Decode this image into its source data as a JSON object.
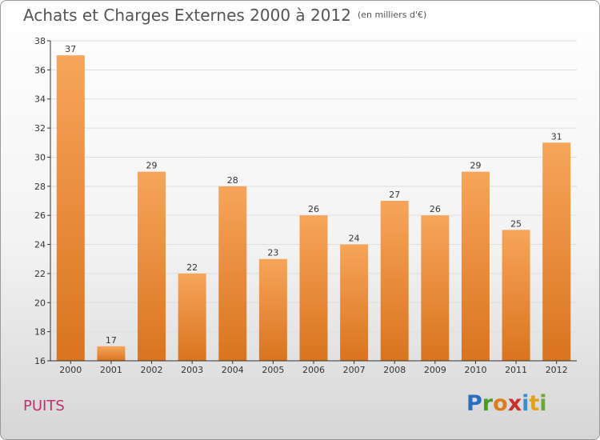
{
  "title": "Achats et Charges Externes 2000 à 2012",
  "unit_label": "(en milliers d'€)",
  "commune": "PUITS",
  "logo": {
    "letters": [
      "P",
      "r",
      "o",
      "x",
      "i",
      "t",
      "i"
    ]
  },
  "colors": {
    "bar_top": "#f7a55a",
    "bar_bottom": "#d9741f",
    "axis": "#333333",
    "grid": "#dddddd"
  },
  "chart_data": {
    "type": "bar",
    "title": "Achats et Charges Externes 2000 à 2012",
    "subtitle": "(en milliers d'€)",
    "categories": [
      "2000",
      "2001",
      "2002",
      "2003",
      "2004",
      "2005",
      "2006",
      "2007",
      "2008",
      "2009",
      "2010",
      "2011",
      "2012"
    ],
    "values": [
      37,
      17,
      29,
      22,
      28,
      23,
      26,
      24,
      27,
      26,
      29,
      25,
      31
    ],
    "ylim": [
      16,
      38
    ],
    "yticks": [
      16,
      18,
      20,
      22,
      24,
      26,
      28,
      30,
      32,
      34,
      36,
      38
    ],
    "grid": true,
    "legend": "none"
  }
}
